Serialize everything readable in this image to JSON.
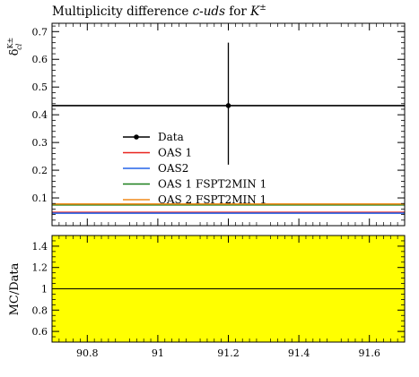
{
  "chart_data": {
    "type": "scatter",
    "title_prefix": "Multiplicity difference ",
    "title_italic": "c-uds",
    "title_mid": " for ",
    "title_particle": "K",
    "title_particle_sup": "±",
    "ylabel_main": "δ",
    "ylabel_main_sup": "K±",
    "ylabel_main_sub": "cl",
    "ylabel_ratio": "MC/Data",
    "xlim": [
      90.7,
      91.7
    ],
    "ylim": [
      0,
      0.73
    ],
    "ratio_ylim": [
      0.5,
      1.5
    ],
    "x_ticks": [
      "90.8",
      "91",
      "91.2",
      "91.4",
      "91.6"
    ],
    "y_ticks": [
      "0.1",
      "0.2",
      "0.3",
      "0.4",
      "0.5",
      "0.6",
      "0.7"
    ],
    "ratio_y_ticks": [
      "0.6",
      "0.8",
      "1",
      "1.2",
      "1.4"
    ],
    "data": {
      "x": 91.2,
      "y": 0.433,
      "yerr_low": 0.22,
      "yerr_high": 0.66,
      "xlow": 90.7,
      "xhigh": 91.7
    },
    "series": [
      {
        "name": "Data",
        "color": "#000000"
      },
      {
        "name": "OAS 1",
        "color": "#e8221c",
        "value": 0.048
      },
      {
        "name": "OAS2",
        "color": "#2563e8",
        "value": 0.045
      },
      {
        "name": "OAS 1 FSPT2MIN 1",
        "color": "#1a7f1a",
        "value": 0.075
      },
      {
        "name": "OAS 2 FSPT2MIN 1",
        "color": "#f08c1c",
        "value": 0.078
      }
    ],
    "ratio_band_color": "#ffff00",
    "ratio_line": 1.0
  }
}
